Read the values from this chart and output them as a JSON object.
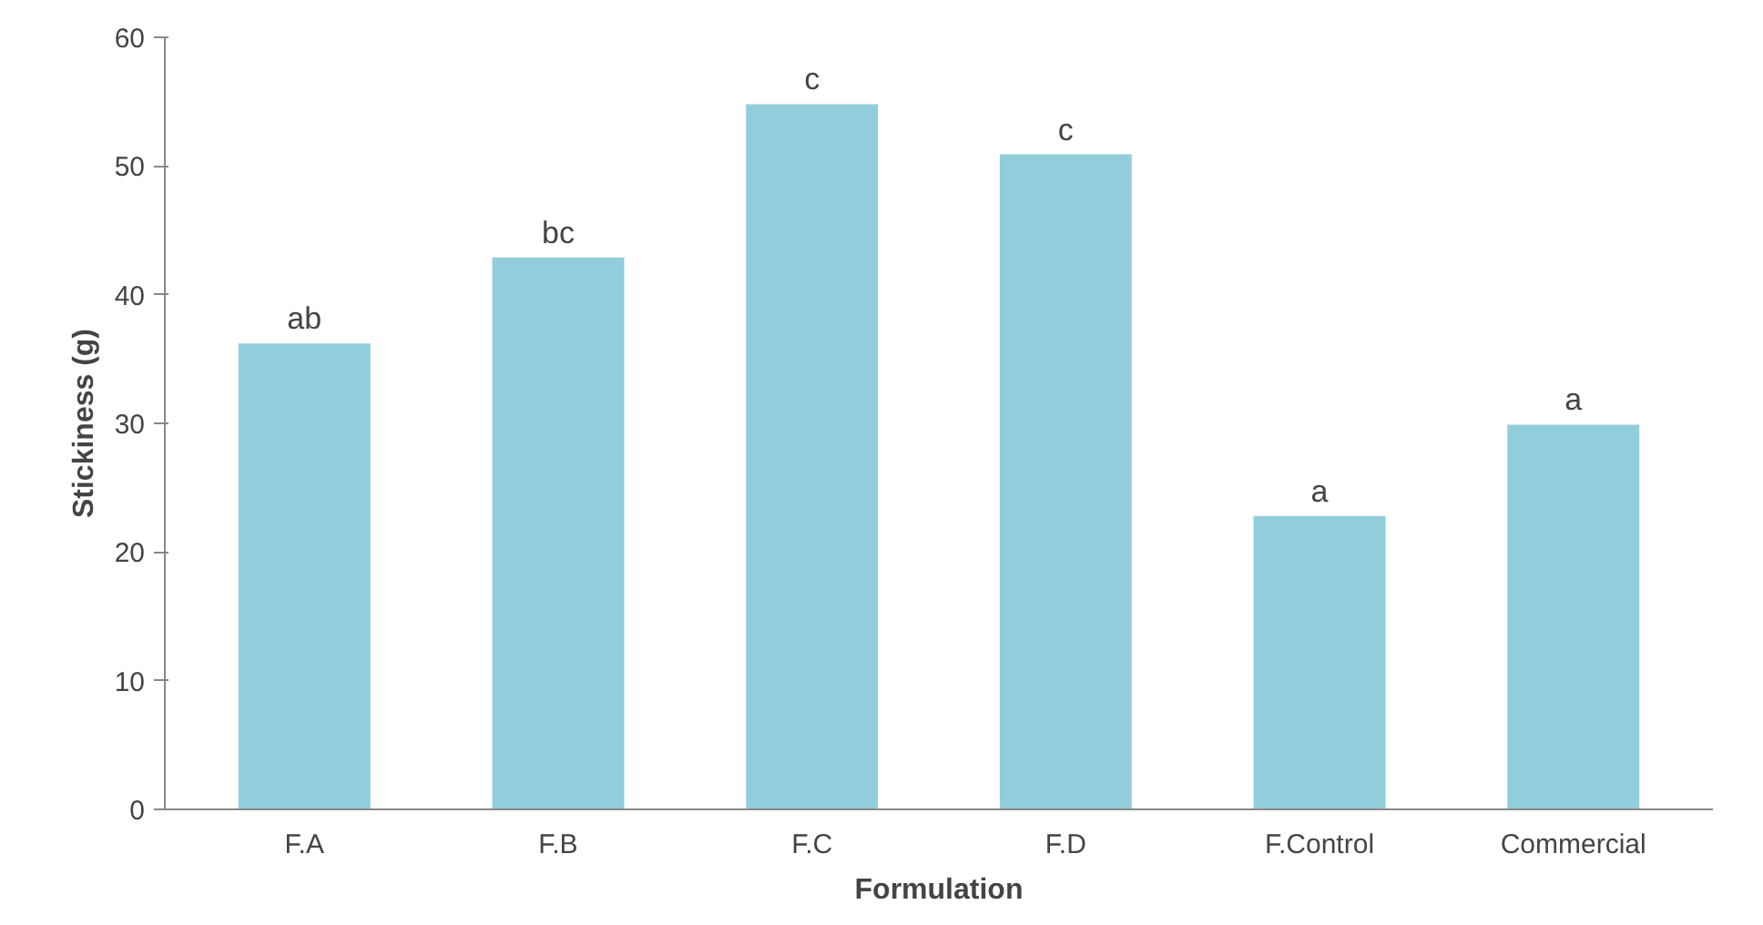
{
  "chart_data": {
    "type": "bar",
    "xlabel": "Formulation",
    "ylabel": "Stickiness (g)",
    "categories": [
      "F.A",
      "F.B",
      "F.C",
      "F.D",
      "F.Control",
      "Commercial"
    ],
    "values": [
      36.2,
      42.9,
      54.8,
      50.9,
      22.8,
      29.9
    ],
    "color": "#92cddc",
    "ylim": [
      0,
      60
    ],
    "yticks": [
      0,
      10,
      20,
      30,
      40,
      50,
      60
    ],
    "grid": false,
    "annotations": [
      {
        "text": "ab",
        "x": "F.A",
        "y": 36.2
      },
      {
        "text": "bc",
        "x": "F.B",
        "y": 42.9
      },
      {
        "text": "c",
        "x": "F.C",
        "y": 54.8
      },
      {
        "text": "c",
        "x": "F.D",
        "y": 50.9
      },
      {
        "text": "a",
        "x": "F.Control",
        "y": 22.8
      },
      {
        "text": "a",
        "x": "Commercial",
        "y": 29.9
      }
    ]
  }
}
